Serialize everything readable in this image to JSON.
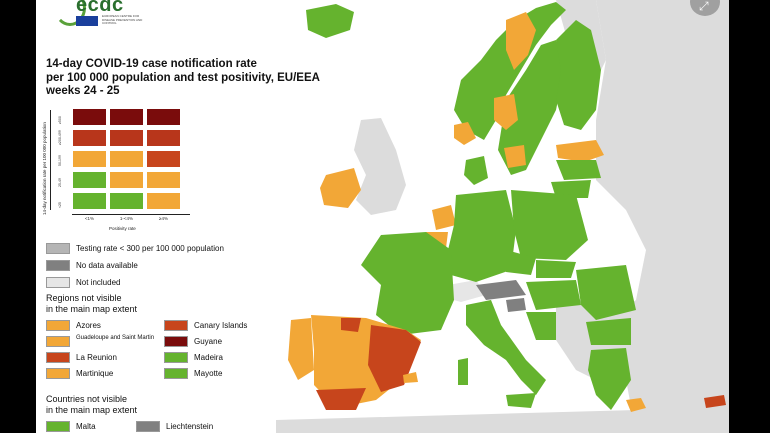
{
  "logo": {
    "name": "ecdc",
    "subtitle": "EUROPEAN CENTRE FOR DISEASE PREVENTION AND CONTROL"
  },
  "title": {
    "line1": "14-day COVID-19 case notification rate",
    "line2": "per 100 000 population and test positivity, EU/EEA",
    "line3": "weeks 24 - 25"
  },
  "matrix": {
    "y_axis_title": "14-day notification rate per 100 000 population",
    "x_axis_title": "Positivity rate",
    "x_labels": [
      "<1%",
      "1-<4%",
      "≥4%"
    ],
    "y_labels": [
      "≥500",
      "≥200-499",
      "50-199",
      "25-49",
      "<25"
    ],
    "rows": [
      [
        "#7a0c0c",
        "#7a0c0c",
        "#7a0c0c"
      ],
      [
        "#b8361b",
        "#b8361b",
        "#b8361b"
      ],
      [
        "#f2a737",
        "#f2a737",
        "#c7451c"
      ],
      [
        "#65b32e",
        "#f2a737",
        "#f2a737"
      ],
      [
        "#65b32e",
        "#65b32e",
        "#f2a737"
      ]
    ]
  },
  "legend": {
    "testing_rate": {
      "label": "Testing rate < 300 per 100 000 population",
      "color": "#b5b5b5"
    },
    "no_data": {
      "label": "No data available",
      "color": "#808080"
    },
    "not_included": {
      "label": "Not included",
      "color": "#e6e6e6"
    }
  },
  "regions_section": {
    "title_line1": "Regions not visible",
    "title_line2": "in the main map extent",
    "items": [
      {
        "name": "Azores",
        "color": "#f2a737"
      },
      {
        "name": "Canary Islands",
        "color": "#c7451c"
      },
      {
        "name": "Guadeloupe and Saint Martin",
        "color": "#f2a737"
      },
      {
        "name": "Guyane",
        "color": "#7a0c0c"
      },
      {
        "name": "La Reunion",
        "color": "#c7451c"
      },
      {
        "name": "Madeira",
        "color": "#65b32e"
      },
      {
        "name": "Martinique",
        "color": "#f2a737"
      },
      {
        "name": "Mayotte",
        "color": "#65b32e"
      }
    ]
  },
  "countries_section": {
    "title_line1": "Countries not visible",
    "title_line2": "in the main map extent",
    "items": [
      {
        "name": "Malta",
        "color": "#65b32e"
      },
      {
        "name": "Liechtenstein",
        "color": "#808080"
      }
    ]
  },
  "colors": {
    "sea": "#ffffff",
    "non_eu": "#dcdcdc",
    "green": "#65b32e",
    "orange": "#f2a737",
    "red": "#c7451c",
    "darkred": "#7a0c0c",
    "grey": "#808080"
  }
}
